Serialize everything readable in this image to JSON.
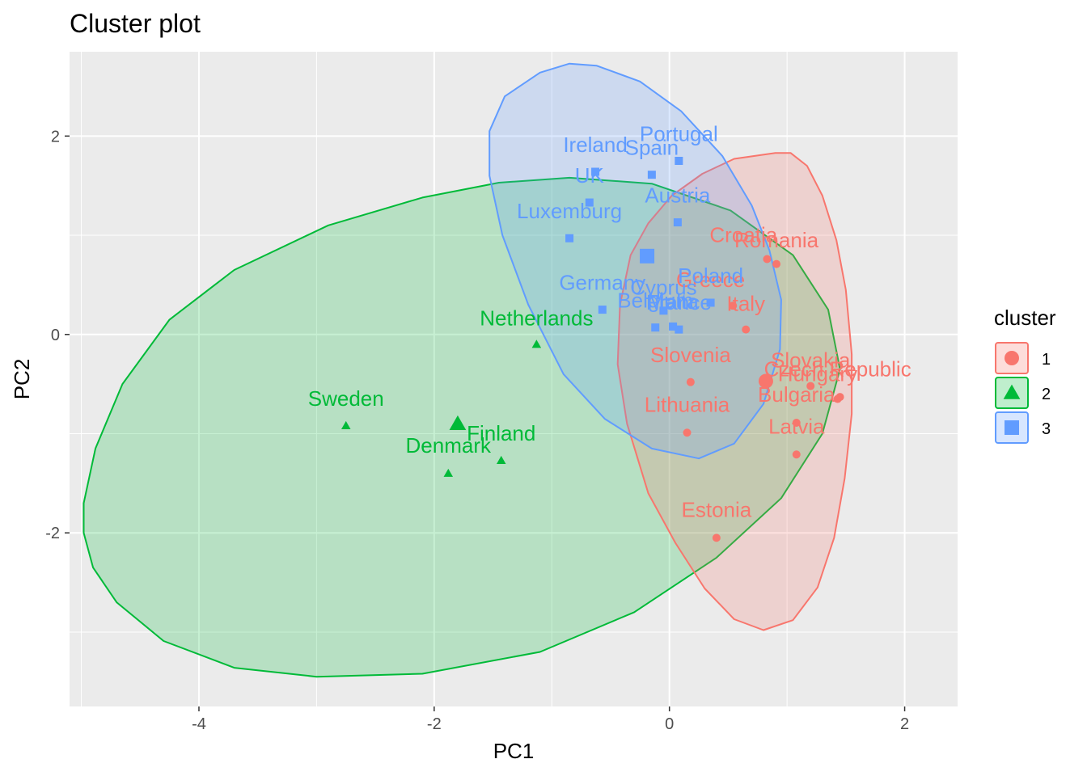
{
  "chart_data": {
    "type": "scatter",
    "title": "Cluster plot",
    "xlabel": "PC1",
    "ylabel": "PC2",
    "xlim": [
      -5.1,
      2.45
    ],
    "ylim": [
      -3.75,
      2.85
    ],
    "x_ticks": [
      -4,
      -2,
      0,
      2
    ],
    "x_tick_labels": [
      "-4",
      "-2",
      "0",
      "2"
    ],
    "y_ticks": [
      -2,
      0,
      2
    ],
    "y_tick_labels": [
      "-2",
      "0",
      "2"
    ],
    "grid": true,
    "legend": {
      "title": "cluster",
      "placement": "right",
      "entries": [
        {
          "label": "1",
          "color": "#F8766D",
          "shape": "circle"
        },
        {
          "label": "2",
          "color": "#00BA38",
          "shape": "triangle"
        },
        {
          "label": "3",
          "color": "#619CFF",
          "shape": "square"
        }
      ]
    },
    "series": [
      {
        "name": "1",
        "color": "#F8766D",
        "shape": "circle",
        "centroid": {
          "x": 0.82,
          "y": -0.47
        },
        "hull": [
          [
            0.9,
            1.83
          ],
          [
            1.03,
            1.83
          ],
          [
            1.17,
            1.7
          ],
          [
            1.3,
            1.4
          ],
          [
            1.42,
            0.95
          ],
          [
            1.5,
            0.45
          ],
          [
            1.55,
            -0.2
          ],
          [
            1.55,
            -0.8
          ],
          [
            1.49,
            -1.45
          ],
          [
            1.4,
            -2.05
          ],
          [
            1.26,
            -2.55
          ],
          [
            1.05,
            -2.88
          ],
          [
            0.8,
            -2.98
          ],
          [
            0.55,
            -2.87
          ],
          [
            0.3,
            -2.56
          ],
          [
            0.05,
            -2.1
          ],
          [
            -0.18,
            -1.6
          ],
          [
            -0.36,
            -0.9
          ],
          [
            -0.44,
            -0.3
          ],
          [
            -0.42,
            0.3
          ],
          [
            -0.33,
            0.8
          ],
          [
            -0.18,
            1.12
          ],
          [
            0.02,
            1.4
          ],
          [
            0.28,
            1.62
          ],
          [
            0.55,
            1.77
          ]
        ],
        "points": [
          {
            "x": 0.83,
            "y": 0.76,
            "label": "Croatia"
          },
          {
            "x": 0.91,
            "y": 0.71,
            "label": "Romania"
          },
          {
            "x": 0.54,
            "y": 0.29,
            "label": "Greece"
          },
          {
            "x": 0.65,
            "y": 0.05,
            "label": "Italy"
          },
          {
            "x": 0.18,
            "y": -0.48,
            "label": "Slovenia"
          },
          {
            "x": 1.2,
            "y": -0.52,
            "label": "Slovakia"
          },
          {
            "x": 1.45,
            "y": -0.63,
            "label": "Czech Republic"
          },
          {
            "x": 1.43,
            "y": -0.65,
            "label": "Hungary"
          },
          {
            "x": 1.08,
            "y": -0.89,
            "label": "Bulgaria"
          },
          {
            "x": 0.15,
            "y": -0.99,
            "label": "Lithuania"
          },
          {
            "x": 1.08,
            "y": -1.21,
            "label": "Latvia"
          },
          {
            "x": 0.4,
            "y": -2.05,
            "label": "Estonia"
          }
        ]
      },
      {
        "name": "2",
        "color": "#00BA38",
        "shape": "triangle",
        "centroid": {
          "x": -1.8,
          "y": -0.9
        },
        "hull": [
          [
            -0.85,
            1.58
          ],
          [
            -0.15,
            1.52
          ],
          [
            0.52,
            1.25
          ],
          [
            1.05,
            0.8
          ],
          [
            1.35,
            0.25
          ],
          [
            1.45,
            -0.35
          ],
          [
            1.3,
            -1.0
          ],
          [
            0.95,
            -1.65
          ],
          [
            0.4,
            -2.25
          ],
          [
            -0.3,
            -2.8
          ],
          [
            -1.1,
            -3.2
          ],
          [
            -2.1,
            -3.42
          ],
          [
            -3.0,
            -3.45
          ],
          [
            -3.7,
            -3.36
          ],
          [
            -4.3,
            -3.09
          ],
          [
            -4.7,
            -2.7
          ],
          [
            -4.9,
            -2.35
          ],
          [
            -4.98,
            -2.0
          ],
          [
            -4.98,
            -1.7
          ],
          [
            -4.88,
            -1.15
          ],
          [
            -4.65,
            -0.5
          ],
          [
            -4.25,
            0.15
          ],
          [
            -3.7,
            0.65
          ],
          [
            -2.9,
            1.1
          ],
          [
            -2.1,
            1.38
          ],
          [
            -1.45,
            1.53
          ]
        ],
        "points": [
          {
            "x": -2.75,
            "y": -0.92,
            "label": "Sweden"
          },
          {
            "x": -1.13,
            "y": -0.1,
            "label": "Netherlands"
          },
          {
            "x": -1.43,
            "y": -1.27,
            "label": "Finland"
          },
          {
            "x": -1.88,
            "y": -1.4,
            "label": "Denmark"
          }
        ]
      },
      {
        "name": "3",
        "color": "#619CFF",
        "shape": "square",
        "centroid": {
          "x": -0.19,
          "y": 0.79
        },
        "hull": [
          [
            -0.62,
            2.71
          ],
          [
            -0.25,
            2.55
          ],
          [
            0.1,
            2.25
          ],
          [
            0.45,
            1.8
          ],
          [
            0.7,
            1.3
          ],
          [
            0.85,
            0.85
          ],
          [
            0.95,
            0.35
          ],
          [
            0.94,
            -0.15
          ],
          [
            0.8,
            -0.7
          ],
          [
            0.55,
            -1.1
          ],
          [
            0.25,
            -1.25
          ],
          [
            -0.15,
            -1.15
          ],
          [
            -0.55,
            -0.85
          ],
          [
            -0.9,
            -0.4
          ],
          [
            -1.2,
            0.3
          ],
          [
            -1.42,
            1.0
          ],
          [
            -1.53,
            1.6
          ],
          [
            -1.53,
            2.05
          ],
          [
            -1.4,
            2.4
          ],
          [
            -1.1,
            2.64
          ],
          [
            -0.85,
            2.73
          ]
        ],
        "points": [
          {
            "x": 0.08,
            "y": 1.75,
            "label": "Portugal"
          },
          {
            "x": -0.63,
            "y": 1.64,
            "label": "Ireland"
          },
          {
            "x": -0.15,
            "y": 1.61,
            "label": "Spain"
          },
          {
            "x": -0.68,
            "y": 1.33,
            "label": "UK"
          },
          {
            "x": 0.07,
            "y": 1.13,
            "label": "Austria"
          },
          {
            "x": -0.85,
            "y": 0.97,
            "label": "Luxemburg"
          },
          {
            "x": 0.35,
            "y": 0.32,
            "label": "Poland"
          },
          {
            "x": -0.57,
            "y": 0.25,
            "label": "Germany"
          },
          {
            "x": -0.05,
            "y": 0.24,
            "label": "Cyprus"
          },
          {
            "x": -0.12,
            "y": 0.07,
            "label": "Belgium"
          },
          {
            "x": 0.03,
            "y": 0.08,
            "label": "Malta"
          },
          {
            "x": 0.08,
            "y": 0.05,
            "label": "France"
          }
        ]
      }
    ],
    "point_labels": [
      {
        "x": 0.63,
        "y": 0.93,
        "text": "Croatia",
        "series": 0
      },
      {
        "x": 0.91,
        "y": 0.88,
        "text": "Romania",
        "series": 0
      },
      {
        "x": 0.35,
        "y": 0.48,
        "text": "Greece",
        "series": 0
      },
      {
        "x": 0.65,
        "y": 0.24,
        "text": "Italy",
        "series": 0
      },
      {
        "x": 0.18,
        "y": -0.28,
        "text": "Slovenia",
        "series": 0
      },
      {
        "x": 1.2,
        "y": -0.33,
        "text": "Slovakia",
        "series": 0
      },
      {
        "x": 1.43,
        "y": -0.42,
        "text": "Czech Republic",
        "series": 0
      },
      {
        "x": 1.26,
        "y": -0.47,
        "text": "Hungary",
        "series": 0
      },
      {
        "x": 1.08,
        "y": -0.68,
        "text": "Bulgaria",
        "series": 0
      },
      {
        "x": 0.15,
        "y": -0.78,
        "text": "Lithuania",
        "series": 0
      },
      {
        "x": 1.08,
        "y": -1.0,
        "text": "Latvia",
        "series": 0
      },
      {
        "x": 0.4,
        "y": -1.84,
        "text": "Estonia",
        "series": 0
      },
      {
        "x": -2.75,
        "y": -0.72,
        "text": "Sweden",
        "series": 1
      },
      {
        "x": -1.13,
        "y": 0.09,
        "text": "Netherlands",
        "series": 1
      },
      {
        "x": -1.43,
        "y": -1.07,
        "text": "Finland",
        "series": 1
      },
      {
        "x": -1.88,
        "y": -1.19,
        "text": "Denmark",
        "series": 1
      },
      {
        "x": 0.08,
        "y": 1.95,
        "text": "Portugal",
        "series": 2
      },
      {
        "x": -0.63,
        "y": 1.84,
        "text": "Ireland",
        "series": 2
      },
      {
        "x": -0.15,
        "y": 1.81,
        "text": "Spain",
        "series": 2
      },
      {
        "x": -0.68,
        "y": 1.53,
        "text": "UK",
        "series": 2
      },
      {
        "x": 0.07,
        "y": 1.33,
        "text": "Austria",
        "series": 2
      },
      {
        "x": -0.85,
        "y": 1.17,
        "text": "Luxemburg",
        "series": 2
      },
      {
        "x": 0.35,
        "y": 0.52,
        "text": "Poland",
        "series": 2
      },
      {
        "x": -0.57,
        "y": 0.45,
        "text": "Germany",
        "series": 2
      },
      {
        "x": -0.05,
        "y": 0.4,
        "text": "Cyprus",
        "series": 2
      },
      {
        "x": -0.12,
        "y": 0.27,
        "text": "Belgium",
        "series": 2
      },
      {
        "x": 0.03,
        "y": 0.26,
        "text": "Malta",
        "series": 2
      },
      {
        "x": 0.08,
        "y": 0.25,
        "text": "France",
        "series": 2
      }
    ]
  }
}
